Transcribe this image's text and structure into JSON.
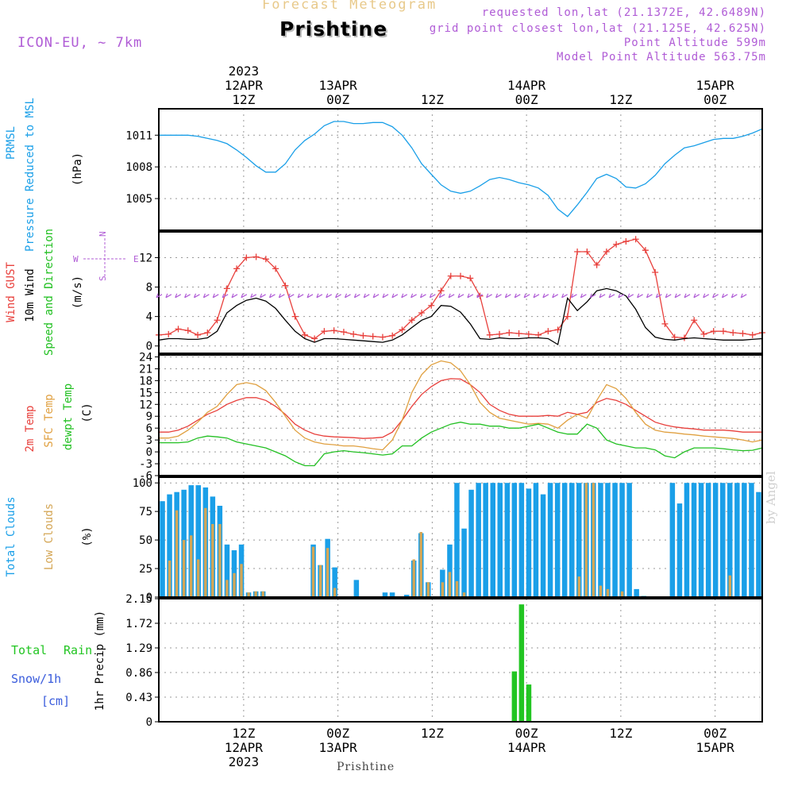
{
  "header": {
    "chart_title": "Forecast Meteogram",
    "location": "Prishtine",
    "model": "ICON-EU, ~ 7km",
    "requested_coords": "requested lon,lat (21.1372E, 42.6489N)",
    "grid_coords": "grid point closest lon,lat (21.125E, 42.625N)",
    "point_altitude": "Point Altitude 599m",
    "model_altitude": "Model Point Altitude 563.75m"
  },
  "watermark": "by Angel",
  "footer_location": "Prishtine",
  "colors": {
    "pressure": "#1a9fe8",
    "gust": "#e8403c",
    "wind": "#000000",
    "temp2m": "#e8403c",
    "sfc_temp": "#e0a040",
    "dewpoint": "#22c022",
    "total_clouds": "#1a9fe8",
    "low_clouds": "#d4a655",
    "rain": "#22c522",
    "snow": "#3a5cdc",
    "purple": "#b05cd6",
    "grid": "#999999"
  },
  "chart_data": {
    "time_axis": {
      "start_hour": 0,
      "end_hour": 64,
      "top_ticks": [
        {
          "hour": 9,
          "lines": [
            "2023",
            "12APR",
            "12Z"
          ]
        },
        {
          "hour": 19,
          "lines": [
            "13APR",
            "00Z"
          ]
        },
        {
          "hour": 29,
          "lines": [
            "12Z"
          ]
        },
        {
          "hour": 39,
          "lines": [
            "14APR",
            "00Z"
          ]
        },
        {
          "hour": 49,
          "lines": [
            "12Z"
          ]
        },
        {
          "hour": 59,
          "lines": [
            "15APR",
            "00Z"
          ]
        }
      ],
      "bottom_ticks": [
        {
          "hour": 9,
          "lines": [
            "12Z",
            "12APR",
            "2023"
          ]
        },
        {
          "hour": 19,
          "lines": [
            "00Z",
            "13APR"
          ]
        },
        {
          "hour": 29,
          "lines": [
            "12Z"
          ]
        },
        {
          "hour": 39,
          "lines": [
            "00Z",
            "14APR"
          ]
        },
        {
          "hour": 49,
          "lines": [
            "12Z"
          ]
        },
        {
          "hour": 59,
          "lines": [
            "00Z",
            "15APR"
          ]
        }
      ]
    },
    "panels": [
      {
        "id": "pressure",
        "type": "line",
        "labels": [
          "PRMSL",
          "Pressure Reduced to MSL",
          "(hPa)"
        ],
        "ylim": [
          1002,
          1013.5
        ],
        "yticks": [
          1005,
          1008,
          1011
        ],
        "series": [
          {
            "name": "PRMSL",
            "color": "#1a9fe8",
            "values": [
              1011.0,
              1011.0,
              1011.0,
              1011.0,
              1010.9,
              1010.7,
              1010.5,
              1010.2,
              1009.6,
              1008.9,
              1008.1,
              1007.5,
              1007.5,
              1008.3,
              1009.6,
              1010.5,
              1011.1,
              1011.9,
              1012.3,
              1012.3,
              1012.1,
              1012.1,
              1012.2,
              1012.2,
              1011.8,
              1011.0,
              1009.8,
              1008.3,
              1007.3,
              1006.3,
              1005.7,
              1005.5,
              1005.7,
              1006.2,
              1006.8,
              1007.0,
              1006.8,
              1006.5,
              1006.3,
              1006.0,
              1005.3,
              1004.0,
              1003.3,
              1004.4,
              1005.6,
              1006.9,
              1007.3,
              1006.9,
              1006.1,
              1006.0,
              1006.4,
              1007.2,
              1008.3,
              1009.1,
              1009.8,
              1010.0,
              1010.3,
              1010.6,
              1010.7,
              1010.7,
              1010.9,
              1011.2,
              1011.6
            ]
          }
        ]
      },
      {
        "id": "wind",
        "type": "line",
        "labels": [
          "Wind GUST",
          "10m Wind",
          "Speed and Direction",
          "(m/s)"
        ],
        "compass": {
          "n": "N",
          "s": "S",
          "w": "W",
          "e": "E"
        },
        "ylim": [
          -1,
          15.5
        ],
        "yticks": [
          0,
          4,
          8,
          12
        ],
        "series": [
          {
            "name": "Wind GUST",
            "color": "#e8403c",
            "markers": true,
            "values": [
              1.5,
              1.6,
              2.3,
              2.1,
              1.5,
              1.8,
              3.5,
              7.8,
              10.5,
              12.0,
              12.1,
              11.8,
              10.5,
              8.2,
              4.0,
              1.5,
              1.0,
              2.0,
              2.1,
              1.9,
              1.6,
              1.4,
              1.3,
              1.2,
              1.4,
              2.2,
              3.5,
              4.5,
              5.5,
              7.5,
              9.5,
              9.5,
              9.2,
              6.8,
              1.5,
              1.6,
              1.8,
              1.7,
              1.6,
              1.5,
              2.0,
              2.2,
              4.0,
              12.8,
              12.8,
              11.0,
              12.8,
              13.8,
              14.2,
              14.5,
              13.0,
              10.0,
              3.0,
              1.2,
              1.1,
              3.5,
              1.6,
              2.0,
              2.0,
              1.8,
              1.7,
              1.5,
              1.8
            ]
          },
          {
            "name": "10m Wind",
            "color": "#000000",
            "values": [
              0.8,
              1.0,
              1.0,
              0.9,
              0.9,
              1.1,
              2.0,
              4.5,
              5.5,
              6.2,
              6.5,
              6.1,
              5.1,
              3.5,
              2.0,
              1.0,
              0.5,
              1.0,
              1.0,
              0.9,
              0.8,
              0.7,
              0.6,
              0.5,
              0.8,
              1.5,
              2.5,
              3.5,
              4.0,
              5.5,
              5.4,
              4.6,
              3.0,
              1.0,
              0.9,
              1.1,
              1.0,
              1.0,
              1.1,
              1.1,
              1.0,
              0.2,
              6.5,
              4.8,
              6.0,
              7.5,
              7.8,
              7.5,
              6.8,
              5.0,
              2.5,
              1.2,
              0.9,
              0.8,
              1.0,
              1.1,
              1.0,
              0.9,
              0.8,
              0.8,
              0.8,
              0.9,
              1.0
            ]
          }
        ]
      },
      {
        "id": "temperature",
        "type": "line",
        "labels": [
          "2m Temp",
          "SFC Temp",
          "dewpt Temp",
          "(C)"
        ],
        "ylim": [
          -6,
          24.5
        ],
        "yticks": [
          -6,
          -3,
          0,
          3,
          6,
          9,
          12,
          15,
          18,
          21,
          24
        ],
        "series": [
          {
            "name": "2m Temp",
            "color": "#e8403c",
            "values": [
              5.0,
              5.0,
              5.5,
              6.5,
              8.0,
              9.5,
              10.5,
              12.0,
              13.0,
              13.7,
              13.7,
              13.0,
              11.5,
              9.5,
              7.0,
              5.5,
              4.5,
              4.0,
              3.8,
              3.7,
              3.6,
              3.4,
              3.5,
              3.7,
              5.0,
              8.0,
              11.5,
              14.5,
              16.5,
              18.0,
              18.5,
              18.4,
              17.0,
              15.0,
              12.0,
              10.5,
              9.5,
              9.0,
              9.0,
              9.0,
              9.2,
              9.0,
              10.0,
              9.5,
              10.0,
              12.5,
              13.5,
              13.0,
              12.0,
              10.5,
              9.0,
              7.5,
              6.8,
              6.3,
              6.0,
              5.8,
              5.5,
              5.5,
              5.5,
              5.3,
              5.0,
              5.0,
              5.0
            ]
          },
          {
            "name": "SFC Temp",
            "color": "#e0a040",
            "values": [
              3.5,
              3.5,
              4.0,
              5.5,
              7.5,
              10.0,
              11.5,
              14.5,
              17.0,
              17.5,
              17.0,
              15.5,
              12.5,
              9.0,
              5.5,
              3.5,
              2.5,
              2.0,
              1.8,
              1.5,
              1.5,
              1.2,
              0.8,
              0.5,
              3.0,
              8.0,
              15.0,
              19.5,
              22.0,
              23.0,
              22.5,
              20.5,
              17.0,
              12.5,
              10.0,
              8.5,
              8.0,
              7.5,
              7.0,
              7.2,
              7.0,
              6.0,
              8.0,
              9.5,
              8.5,
              13.0,
              17.0,
              16.0,
              13.5,
              10.0,
              7.0,
              5.5,
              5.0,
              4.8,
              4.5,
              4.3,
              4.0,
              3.8,
              3.6,
              3.4,
              3.0,
              2.5,
              3.0
            ]
          },
          {
            "name": "dewpt Temp",
            "color": "#22c022",
            "values": [
              2.3,
              2.3,
              2.3,
              2.5,
              3.5,
              4.0,
              3.8,
              3.5,
              2.5,
              2.0,
              1.5,
              1.0,
              0.0,
              -1.0,
              -2.5,
              -3.5,
              -3.5,
              -0.5,
              0.0,
              0.3,
              0.0,
              -0.2,
              -0.5,
              -0.8,
              -0.5,
              1.5,
              1.5,
              3.5,
              5.0,
              6.0,
              7.0,
              7.5,
              7.0,
              7.0,
              6.5,
              6.5,
              6.0,
              6.0,
              6.5,
              7.0,
              6.0,
              5.0,
              4.5,
              4.5,
              7.0,
              6.0,
              3.0,
              2.0,
              1.5,
              1.0,
              1.0,
              0.5,
              -1.0,
              -1.5,
              0.0,
              1.0,
              1.0,
              1.0,
              0.8,
              0.5,
              0.3,
              0.4,
              1.0
            ]
          }
        ]
      },
      {
        "id": "clouds",
        "type": "bar",
        "labels": [
          "Total Clouds",
          "Low Clouds",
          "(%)"
        ],
        "ylim": [
          0,
          105
        ],
        "yticks": [
          0,
          25,
          50,
          75,
          100
        ],
        "series": [
          {
            "name": "Total Clouds",
            "color": "#1a9fe8",
            "values": [
              84,
              90,
              92,
              94,
              98,
              98,
              96,
              88,
              80,
              46,
              41,
              46,
              4,
              5,
              5,
              0,
              0,
              0,
              0,
              0,
              0,
              46,
              28,
              51,
              26,
              0,
              0,
              15,
              0,
              0,
              0,
              4,
              4,
              0,
              2,
              32,
              56,
              13,
              0,
              24,
              46,
              100,
              60,
              94,
              100,
              100,
              100,
              100,
              100,
              100,
              100,
              95,
              100,
              90,
              100,
              100,
              100,
              100,
              100,
              100,
              100,
              100,
              100,
              100,
              100,
              100,
              7,
              1,
              0,
              0,
              0,
              100,
              82,
              100,
              100,
              100,
              100,
              100,
              100,
              100,
              100,
              100,
              100,
              92
            ]
          },
          {
            "name": "Low Clouds",
            "color": "#d4a655",
            "values": [
              0,
              32,
              76,
              50,
              54,
              33,
              78,
              64,
              64,
              15,
              21,
              29,
              4,
              5,
              5,
              0,
              0,
              0,
              0,
              0,
              0,
              44,
              28,
              43,
              8,
              0,
              0,
              0,
              0,
              0,
              0,
              0,
              0,
              0,
              0,
              33,
              57,
              13,
              0,
              13,
              22,
              14,
              4,
              0,
              0,
              0,
              0,
              0,
              0,
              0,
              0,
              0,
              0,
              0,
              0,
              0,
              0,
              0,
              18,
              100,
              100,
              10,
              7,
              0,
              5,
              0,
              0,
              0,
              0,
              0,
              0,
              0,
              0,
              0,
              0,
              0,
              0,
              0,
              0,
              19,
              0,
              0,
              0,
              0
            ]
          }
        ]
      },
      {
        "id": "precip",
        "type": "bar",
        "labels": [
          "Total",
          "Rain",
          "Snow/1h",
          "[cm]",
          "1hr Precip (mm)"
        ],
        "ylim": [
          0,
          2.15
        ],
        "yticks": [
          0,
          0.43,
          0.86,
          1.29,
          1.72,
          2.15
        ],
        "ytick_labels": [
          "0",
          "0.43",
          "0.86",
          "1.29",
          "1.72",
          "2.15"
        ],
        "series": [
          {
            "name": "Total Rain",
            "color": "#22c522",
            "values": [
              0,
              0,
              0,
              0,
              0,
              0.01,
              0,
              0,
              0,
              0,
              0,
              0,
              0,
              0,
              0,
              0,
              0,
              0,
              0,
              0,
              0,
              0,
              0,
              0,
              0,
              0,
              0,
              0,
              0,
              0,
              0,
              0,
              0,
              0,
              0,
              0,
              0,
              0,
              0,
              0,
              0,
              0,
              0,
              0,
              0,
              0,
              0,
              0,
              0,
              0.88,
              2.05,
              0.65,
              0,
              0,
              0,
              0,
              0,
              0,
              0,
              0,
              0,
              0,
              0,
              0,
              0,
              0,
              0,
              0,
              0,
              0,
              0,
              0,
              0,
              0,
              0,
              0.01,
              0,
              0,
              0,
              0,
              0,
              0,
              0,
              0
            ]
          }
        ]
      }
    ]
  }
}
